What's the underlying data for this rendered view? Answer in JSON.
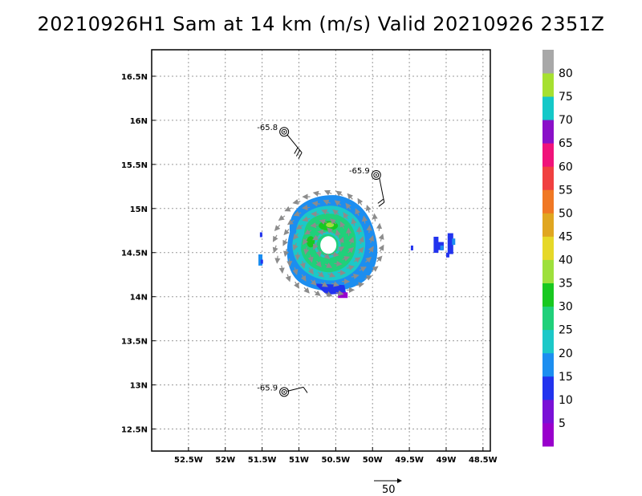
{
  "title": "20210926H1 Sam at 14 km (m/s) Valid 20210926 2351Z",
  "map": {
    "lon_range": [
      -53.0,
      -48.4
    ],
    "lat_range": [
      12.25,
      16.8
    ],
    "lat_ticks": [
      {
        "value": 16.5,
        "label": "16.5N"
      },
      {
        "value": 16.0,
        "label": "16N"
      },
      {
        "value": 15.5,
        "label": "15.5N"
      },
      {
        "value": 15.0,
        "label": "15N"
      },
      {
        "value": 14.5,
        "label": "14.5N"
      },
      {
        "value": 14.0,
        "label": "14N"
      },
      {
        "value": 13.5,
        "label": "13.5N"
      },
      {
        "value": 13.0,
        "label": "13N"
      },
      {
        "value": 12.5,
        "label": "12.5N"
      }
    ],
    "lon_ticks": [
      {
        "value": -52.5,
        "label": "52.5W"
      },
      {
        "value": -52.0,
        "label": "52W"
      },
      {
        "value": -51.5,
        "label": "51.5W"
      },
      {
        "value": -51.0,
        "label": "51W"
      },
      {
        "value": -50.5,
        "label": "50.5W"
      },
      {
        "value": -50.0,
        "label": "50W"
      },
      {
        "value": -49.5,
        "label": "49.5W"
      },
      {
        "value": -49.0,
        "label": "49W"
      },
      {
        "value": -48.5,
        "label": "48.5W"
      }
    ],
    "grid": "dotted gray",
    "storm_center": {
      "lon": -50.6,
      "lat": 14.55
    },
    "observations": [
      {
        "label": "-65.8",
        "lon": -51.2,
        "lat": 15.87
      },
      {
        "label": "-65.9",
        "lon": -49.95,
        "lat": 15.38
      },
      {
        "label": "-65.9",
        "lon": -51.2,
        "lat": 12.92
      }
    ]
  },
  "colorbar": {
    "labels": [
      "5",
      "10",
      "15",
      "20",
      "25",
      "30",
      "35",
      "40",
      "45",
      "50",
      "55",
      "60",
      "65",
      "70",
      "75",
      "80"
    ],
    "colors": [
      "#9900cc",
      "#7a10d6",
      "#2233ee",
      "#1c8ef0",
      "#1cc8c8",
      "#20d07a",
      "#18c820",
      "#9ee03c",
      "#e6d828",
      "#e0a620",
      "#f07824",
      "#f04040",
      "#f0127a",
      "#8a10c8",
      "#14c8c8",
      "#a6e030",
      "#a8a8a8"
    ]
  },
  "wind_colors": {
    "15": "#1c8ef0",
    "20": "#1cc8c8",
    "25": "#20d07a",
    "30": "#18c820",
    "35": "#9ee03c",
    "10": "#2233ee",
    "5": "#9900cc"
  },
  "scale_arrow": {
    "label": "50"
  }
}
